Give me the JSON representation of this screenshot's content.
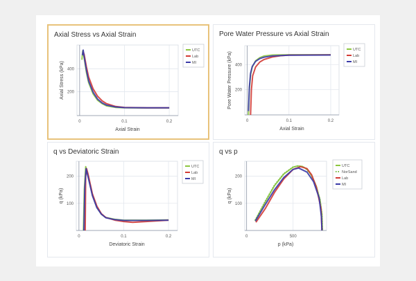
{
  "chart_data": [
    {
      "type": "line",
      "title": "Axial Stress vs Axial Strain",
      "xlabel": "Axial Strain",
      "ylabel": "Axial Stress (kPa)",
      "xlim": [
        -0.006,
        0.22
      ],
      "ylim": [
        -10,
        610
      ],
      "xticks": [
        0,
        0.1,
        0.2
      ],
      "yticks": [
        200,
        400
      ],
      "grid": true,
      "legend": "right",
      "series": [
        {
          "name": "UTC",
          "color": "#8cc63f",
          "points": [
            [
              0.005,
              480
            ],
            [
              0.007,
              560
            ],
            [
              0.01,
              500
            ],
            [
              0.015,
              370
            ],
            [
              0.02,
              280
            ],
            [
              0.03,
              180
            ],
            [
              0.04,
              125
            ],
            [
              0.05,
              95
            ],
            [
              0.06,
              75
            ],
            [
              0.08,
              62
            ],
            [
              0.1,
              58
            ],
            [
              0.15,
              57
            ],
            [
              0.2,
              57
            ]
          ]
        },
        {
          "name": "Lab",
          "color": "#d23a35",
          "points": [
            [
              0.008,
              550
            ],
            [
              0.01,
              530
            ],
            [
              0.015,
              420
            ],
            [
              0.02,
              330
            ],
            [
              0.03,
              225
            ],
            [
              0.04,
              160
            ],
            [
              0.05,
              120
            ],
            [
              0.06,
              95
            ],
            [
              0.08,
              70
            ],
            [
              0.1,
              62
            ],
            [
              0.15,
              58
            ],
            [
              0.2,
              58
            ]
          ]
        },
        {
          "name": "MI",
          "color": "#3a3aa8",
          "points": [
            [
              0.006,
              520
            ],
            [
              0.008,
              565
            ],
            [
              0.01,
              510
            ],
            [
              0.015,
              390
            ],
            [
              0.02,
              295
            ],
            [
              0.03,
              195
            ],
            [
              0.04,
              135
            ],
            [
              0.05,
              102
            ],
            [
              0.06,
              82
            ],
            [
              0.08,
              66
            ],
            [
              0.1,
              60
            ],
            [
              0.15,
              58
            ],
            [
              0.2,
              58
            ]
          ]
        }
      ]
    },
    {
      "type": "line",
      "title": "Pore Water Pressure vs Axial Strain",
      "xlabel": "Axial Strain",
      "ylabel": "Pore Water Pressure (kPa)",
      "xlim": [
        -0.006,
        0.22
      ],
      "ylim": [
        0,
        550
      ],
      "xticks": [
        0,
        0.1,
        0.2
      ],
      "yticks": [
        200,
        400
      ],
      "grid": true,
      "legend": "right",
      "series": [
        {
          "name": "UTC",
          "color": "#8cc63f",
          "points": [
            [
              0.003,
              0
            ],
            [
              0.005,
              200
            ],
            [
              0.008,
              320
            ],
            [
              0.012,
              380
            ],
            [
              0.02,
              430
            ],
            [
              0.03,
              455
            ],
            [
              0.04,
              468
            ],
            [
              0.06,
              476
            ],
            [
              0.1,
              478
            ],
            [
              0.2,
              478
            ]
          ]
        },
        {
          "name": "Lab",
          "color": "#d23a35",
          "points": [
            [
              0.008,
              0
            ],
            [
              0.01,
              200
            ],
            [
              0.013,
              310
            ],
            [
              0.02,
              380
            ],
            [
              0.03,
              420
            ],
            [
              0.04,
              440
            ],
            [
              0.06,
              460
            ],
            [
              0.08,
              470
            ],
            [
              0.1,
              475
            ],
            [
              0.2,
              477
            ]
          ]
        },
        {
          "name": "MI",
          "color": "#3a3aa8",
          "points": [
            [
              0.003,
              30
            ],
            [
              0.005,
              220
            ],
            [
              0.008,
              330
            ],
            [
              0.012,
              385
            ],
            [
              0.02,
              425
            ],
            [
              0.03,
              447
            ],
            [
              0.04,
              458
            ],
            [
              0.06,
              468
            ],
            [
              0.1,
              474
            ],
            [
              0.2,
              476
            ]
          ]
        }
      ]
    },
    {
      "type": "line",
      "title": "q vs Deviatoric Strain",
      "xlabel": "Deviatoric Strain",
      "ylabel": "q (kPa)",
      "xlim": [
        -0.006,
        0.22
      ],
      "ylim": [
        0,
        255
      ],
      "xticks": [
        0,
        0.1,
        0.2
      ],
      "yticks": [
        100,
        200
      ],
      "grid": true,
      "legend": "right",
      "series": [
        {
          "name": "UTC",
          "color": "#8cc63f",
          "points": [
            [
              0.01,
              0
            ],
            [
              0.012,
              150
            ],
            [
              0.015,
              235
            ],
            [
              0.02,
              205
            ],
            [
              0.03,
              130
            ],
            [
              0.04,
              85
            ],
            [
              0.05,
              60
            ],
            [
              0.06,
              48
            ],
            [
              0.08,
              41
            ],
            [
              0.1,
              38
            ],
            [
              0.15,
              38
            ],
            [
              0.2,
              39
            ]
          ]
        },
        {
          "name": "Lab",
          "color": "#d23a35",
          "points": [
            [
              0.014,
              0
            ],
            [
              0.015,
              200
            ],
            [
              0.017,
              228
            ],
            [
              0.02,
              210
            ],
            [
              0.03,
              135
            ],
            [
              0.04,
              90
            ],
            [
              0.05,
              62
            ],
            [
              0.06,
              48
            ],
            [
              0.08,
              38
            ],
            [
              0.1,
              33
            ],
            [
              0.12,
              30
            ],
            [
              0.15,
              33
            ],
            [
              0.2,
              38
            ]
          ]
        },
        {
          "name": "MI",
          "color": "#3a3aa8",
          "points": [
            [
              0.011,
              0
            ],
            [
              0.013,
              160
            ],
            [
              0.016,
              228
            ],
            [
              0.02,
              200
            ],
            [
              0.03,
              128
            ],
            [
              0.04,
              84
            ],
            [
              0.05,
              60
            ],
            [
              0.06,
              47
            ],
            [
              0.08,
              40
            ],
            [
              0.1,
              37
            ],
            [
              0.15,
              37
            ],
            [
              0.2,
              38
            ]
          ]
        }
      ]
    },
    {
      "type": "line",
      "title": "q vs p",
      "xlabel": "p (kPa)",
      "ylabel": "q (kPa)",
      "xlim": [
        -20,
        860
      ],
      "ylim": [
        0,
        255
      ],
      "xticks": [
        0,
        500
      ],
      "yticks": [
        100,
        200
      ],
      "grid": true,
      "legend": "right",
      "series": [
        {
          "name": "UTC",
          "color": "#8cc63f",
          "points": [
            [
              90,
              35
            ],
            [
              200,
              105
            ],
            [
              300,
              165
            ],
            [
              400,
              208
            ],
            [
              500,
              233
            ],
            [
              550,
              238
            ],
            [
              600,
              236
            ],
            [
              650,
              226
            ],
            [
              700,
              202
            ],
            [
              750,
              162
            ],
            [
              790,
              112
            ],
            [
              810,
              60
            ],
            [
              815,
              0
            ]
          ]
        },
        {
          "name": "NorSand",
          "color": "#6fb83a",
          "dashed": true,
          "points": [
            [
              90,
              38
            ],
            [
              200,
              108
            ],
            [
              300,
              168
            ],
            [
              400,
              210
            ],
            [
              500,
              234
            ],
            [
              560,
              238
            ],
            [
              620,
              232
            ],
            [
              680,
              212
            ],
            [
              740,
              172
            ],
            [
              790,
              115
            ],
            [
              812,
              55
            ],
            [
              816,
              0
            ]
          ]
        },
        {
          "name": "Lab",
          "color": "#d23a35",
          "points": [
            [
              100,
              30
            ],
            [
              200,
              80
            ],
            [
              300,
              140
            ],
            [
              400,
              190
            ],
            [
              500,
              225
            ],
            [
              580,
              235
            ],
            [
              650,
              228
            ],
            [
              700,
              205
            ],
            [
              750,
              160
            ],
            [
              800,
              80
            ],
            [
              810,
              0
            ]
          ]
        },
        {
          "name": "MI",
          "color": "#3a3aa8",
          "points": [
            [
              95,
              35
            ],
            [
              200,
              95
            ],
            [
              300,
              150
            ],
            [
              400,
              195
            ],
            [
              500,
              225
            ],
            [
              560,
              230
            ],
            [
              650,
              215
            ],
            [
              720,
              180
            ],
            [
              780,
              120
            ],
            [
              805,
              50
            ],
            [
              810,
              0
            ]
          ]
        }
      ]
    }
  ]
}
